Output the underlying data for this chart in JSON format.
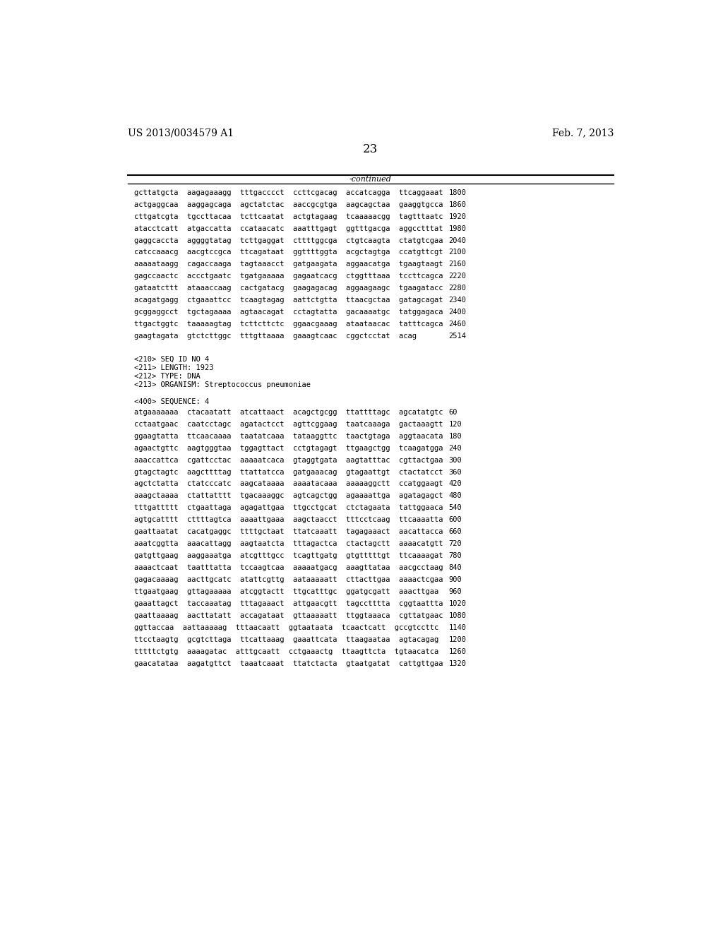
{
  "header_left": "US 2013/0034579 A1",
  "header_right": "Feb. 7, 2013",
  "page_number": "23",
  "continued_label": "-continued",
  "background_color": "#ffffff",
  "text_color": "#000000",
  "font_size": 7.5,
  "mono_font": "DejaVu Sans Mono",
  "header_font_size": 10,
  "page_num_font_size": 12,
  "section1_lines": [
    [
      "gcttatgcta  aagagaaagg  tttgacccct  ccttcgacag  accatcagga  ttcaggaaat",
      "1800"
    ],
    [
      "actgaggcaa  aaggagcaga  agctatctac  aaccgcgtga  aagcagctaa  gaaggtgcca",
      "1860"
    ],
    [
      "cttgatcgta  tgccttacaa  tcttcaatat  actgtagaag  tcaaaaacgg  tagtttaatc",
      "1920"
    ],
    [
      "atacctcatt  atgaccatta  ccataacatc  aaatttgagt  ggtttgacga  aggcctttat",
      "1980"
    ],
    [
      "gaggcaccta  aggggtatag  tcttgaggat  cttttggcga  ctgtcaagta  ctatgtcgaa",
      "2040"
    ],
    [
      "catccaaacg  aacgtccgca  ttcagataat  ggttttggta  acgctagtga  ccatgttcgt",
      "2100"
    ],
    [
      "aaaaataagg  cagaccaaga  tagtaaacct  gatgaagata  aggaacatga  tgaagtaagt",
      "2160"
    ],
    [
      "gagccaactc  accctgaatc  tgatgaaaaa  gagaatcacg  ctggtttaaa  tccttcagca",
      "2220"
    ],
    [
      "gataatcttt  ataaaccaag  cactgatacg  gaagagacag  aggaagaagc  tgaagatacc",
      "2280"
    ],
    [
      "acagatgagg  ctgaaattcc  tcaagtagag  aattctgtta  ttaacgctaa  gatagcagat",
      "2340"
    ],
    [
      "gcggaggcct  tgctagaaaa  agtaacagat  cctagtatta  gacaaaatgc  tatggagaca",
      "2400"
    ],
    [
      "ttgactggtc  taaaaagtag  tcttcttctc  ggaacgaaag  ataataacac  tatttcagca",
      "2460"
    ],
    [
      "gaagtagata  gtctcttggc  tttgttaaaa  gaaagtcaac  cggctcctat  acag",
      "2514"
    ]
  ],
  "meta_lines": [
    "<210> SEQ ID NO 4",
    "<211> LENGTH: 1923",
    "<212> TYPE: DNA",
    "<213> ORGANISM: Streptococcus pneumoniae"
  ],
  "section2_header": "<400> SEQUENCE: 4",
  "section2_lines": [
    [
      "atgaaaaaaa  ctacaatatt  atcattaact  acagctgcgg  ttattttagc  agcatatgtc",
      "60"
    ],
    [
      "cctaatgaac  caatcctagc  agatactcct  agttcggaag  taatcaaaga  gactaaagtt",
      "120"
    ],
    [
      "ggaagtatta  ttcaacaaaa  taatatcaaa  tataaggttc  taactgtaga  aggtaacata",
      "180"
    ],
    [
      "agaactgttc  aagtgggtaa  tggagttact  cctgtagagt  ttgaagctgg  tcaagatgga",
      "240"
    ],
    [
      "aaaccattca  cgattcctac  aaaaatcaca  gtaggtgata  aagtatttac  cgttactgaa",
      "300"
    ],
    [
      "gtagctagtc  aagcttttag  ttattatcca  gatgaaacag  gtagaattgt  ctactatcct",
      "360"
    ],
    [
      "agctctatta  ctatcccatc  aagcataaaa  aaaatacaaa  aaaaaggctt  ccatggaagt",
      "420"
    ],
    [
      "aaagctaaaa  ctattatttt  tgacaaaggc  agtcagctgg  agaaaattga  agatagagct",
      "480"
    ],
    [
      "tttgattttt  ctgaattaga  agagattgaa  ttgcctgcat  ctctagaata  tattggaaca",
      "540"
    ],
    [
      "agtgcatttt  cttttagtca  aaaattgaaa  aagctaacct  tttcctcaag  ttcaaaatta",
      "600"
    ],
    [
      "gaattaatat  cacatgaggc  ttttgctaat  ttatcaaatt  tagagaaact  aacattacca",
      "660"
    ],
    [
      "aaatcggtta  aaacattagg  aagtaatcta  tttagactca  ctactagctt  aaaacatgtt",
      "720"
    ],
    [
      "gatgttgaag  aaggaaatga  atcgtttgcc  tcagttgatg  gtgtttttgt  ttcaaaagat",
      "780"
    ],
    [
      "aaaactcaat  taatttatta  tccaagtcaa  aaaaatgacg  aaagttataa  aacgcctaag",
      "840"
    ],
    [
      "gagacaaaag  aacttgcatc  atattcgttg  aataaaaatt  cttacttgaa  aaaactcgaa",
      "900"
    ],
    [
      "ttgaatgaag  gttagaaaaa  atcggtactt  ttgcatttgc  ggatgcgatt  aaacttgaa",
      "960"
    ],
    [
      "gaaattagct  taccaaatag  tttagaaact  attgaacgtt  tagcctttta  cggtaattta",
      "1020"
    ],
    [
      "gaattaaaag  aacttatatt  accagataat  gttaaaaatt  ttggtaaaca  cgttatgaac",
      "1080"
    ],
    [
      "ggttaccaa  aattaaaaag  tttaacaatt  ggtaataata  tcaactcatt  gccgtccttc",
      "1140"
    ],
    [
      "ttcctaagtg  gcgtcttaga  ttcattaaag  gaaattcata  ttaagaataa  agtacagag",
      "1200"
    ],
    [
      "tttttctgtg  aaaagatac  atttgcaatt  cctgaaactg  ttaagttcta  tgtaacatca",
      "1260"
    ],
    [
      "gaacatataa  aagatgttct  taaatcaaat  ttatctacta  gtaatgatat  cattgttgaa",
      "1320"
    ]
  ]
}
